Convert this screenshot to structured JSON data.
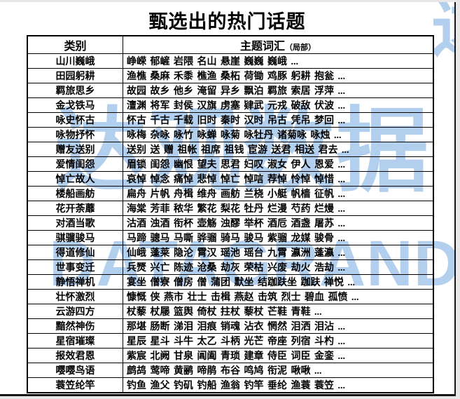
{
  "title": "甄选出的热门话题",
  "watermark": {
    "line1": "达观数据",
    "line2": "DATAGRAND",
    "corner": "达",
    "color": "#b3cfee"
  },
  "table": {
    "header_category": "类别",
    "header_topics": "主题词汇",
    "header_note": "（局部）",
    "rows": [
      {
        "category": "山川巍峨",
        "topics": "峥嵘 郁嵼 岩隈 名山 悬崖 巍巍 巍峨 ..."
      },
      {
        "category": "田园躬耕",
        "topics": "渔樵 桑麻 禾黍 樵渔 桑柘 荷锄 鸡豚 躬耕 抱瓮 ..."
      },
      {
        "category": "羁旅思乡",
        "topics": "故园 故乡 他乡 淹留 异乡 飘泊 羁旅 索居 浮萍 ..."
      },
      {
        "category": "金戈铁马",
        "topics": "澶渊 将军 封侯 汉旗 虏塞 肄武 元戎 破敌 伏波 ..."
      },
      {
        "category": "咏史怀古",
        "topics": "怀古 千古 千载 旧时 秦时 汉时 吊古 凭吊 梦回 ..."
      },
      {
        "category": "咏物抒怀",
        "topics": "咏梅 杂咏 咏竹 咏蝉 咏菊 咏牡丹 诸菊咏 咏烛 ..."
      },
      {
        "category": "赠友送别",
        "topics": "送别 送 赠 祖帐 祖席 祖钱 宦游 送君 相送 君去 ..."
      },
      {
        "category": "爱情闺怨",
        "topics": "眉锁 闺怨 幽恨 望夫 思君 妇叹 淑女 伊人 恩爱 ..."
      },
      {
        "category": "悼亡故人",
        "topics": "哀悼 悼念 痛悼 悲悼 悼亡 悼唁 荐悼 怜悼 悼惜 ..."
      },
      {
        "category": "楼船画舫",
        "topics": "扁舟 片帆 舟楫 维舟 画舫 兰桡 小艇 帆樯 征帆 ..."
      },
      {
        "category": "花开荼蘼",
        "topics": "海棠 芳菲 秾华 繁花 梨花 牡丹 烂漫 芍药 烂熳 ..."
      },
      {
        "category": "对酒当歌",
        "topics": "沽酒 浊酒 衔杯 壶觞 浊醪 举杯 酒卮 酒盏 屠苏 ..."
      },
      {
        "category": "骐骥骏马",
        "topics": "马蹄 骢马 马嘶 骅骝 骑马 骏马 紫骝 龙媒 骏骨 ..."
      },
      {
        "category": "得道修仙",
        "topics": "仙峨 蓬莱 隐沦 霄汉 瑶池 瑶台 九霄 瀛洲 蓬瀛 ..."
      },
      {
        "category": "世事变迁",
        "topics": "兵燹 兴亡 陈迹 沧桑 劫灰 荣枯 兴废 劫火 浩劫 ..."
      },
      {
        "category": "静悟禅机",
        "topics": "宴坐 僧寮 僧房 僧 蒲团 默坐 结跏趺坐 跏趺 禅悦 ..."
      },
      {
        "category": "壮怀激烈",
        "topics": "慷慨 侠 燕市 壮士 击楫 燕赵 击筑 烈士 碧血 孤愤 ..."
      },
      {
        "category": "云游四方",
        "topics": "杖藜 杖屦 篮舆 倚杖 拄杖 藜杖 芒鞋 青鞋 ..."
      },
      {
        "category": "黯然神伤",
        "topics": "那堪 肠断 涕泪 泪痕 销魂 沾衣 惘然 泪洒 泪沾 ..."
      },
      {
        "category": "星宿璀璨",
        "topics": "星辰 星斗 斗牛 太乙 斗柄 光芒 帝座 列宿 斗杓 ..."
      },
      {
        "category": "报效君恩",
        "topics": "紫宸 北阙 甘泉 阊阖 青琐 建章 侍臣 词臣 金銮 ..."
      },
      {
        "category": "嘤嘤鸟语",
        "topics": "鹧鸪 莺啼 黄鹂 啼鹃 布谷 鸣鸠 衔泥 啾啾 ..."
      },
      {
        "category": "蓑笠纶竿",
        "topics": "钓鱼 渔父 钓矶 钓船 渔翁 钓竿 垂纶 渔蓑 蓑笠 ..."
      }
    ]
  }
}
